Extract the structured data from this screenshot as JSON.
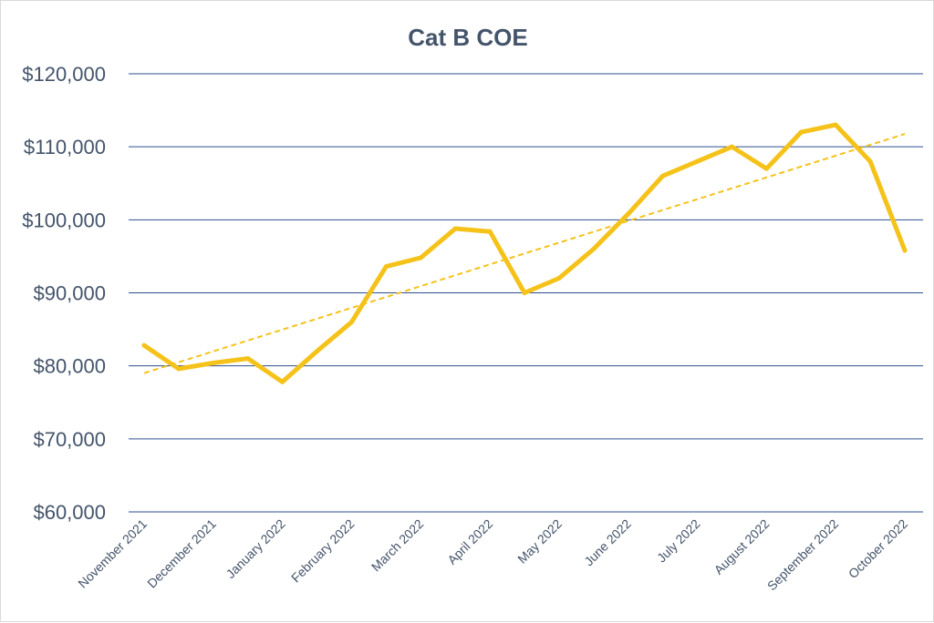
{
  "chart_data": {
    "type": "line",
    "title": "Cat B COE",
    "xlabel": "",
    "ylabel": "",
    "ylim": [
      60000,
      120000
    ],
    "y_ticks": [
      60000,
      70000,
      80000,
      90000,
      100000,
      110000,
      120000
    ],
    "y_tick_labels": [
      "$60,000",
      "$70,000",
      "$80,000",
      "$90,000",
      "$100,000",
      "$110,000",
      "$120,000"
    ],
    "x_tick_labels": [
      "November 2021",
      "December 2021",
      "January 2022",
      "February 2022",
      "March 2022",
      "April 2022",
      "May 2022",
      "June 2022",
      "July 2022",
      "August 2022",
      "September 2022",
      "October 2022"
    ],
    "series": [
      {
        "color": "#f5c219",
        "values": [
          82800,
          79600,
          80400,
          81000,
          77800,
          82000,
          86000,
          93600,
          94800,
          98800,
          98400,
          90000,
          92000,
          96000,
          100800,
          106000,
          108000,
          110000,
          107000,
          112000,
          113000,
          108000,
          95800
        ]
      }
    ],
    "trendline": {
      "style": "dashed",
      "linear": true,
      "color": "#f5c219"
    },
    "grid": true,
    "gridline_color": "#2f4f8f",
    "legend": "none"
  }
}
